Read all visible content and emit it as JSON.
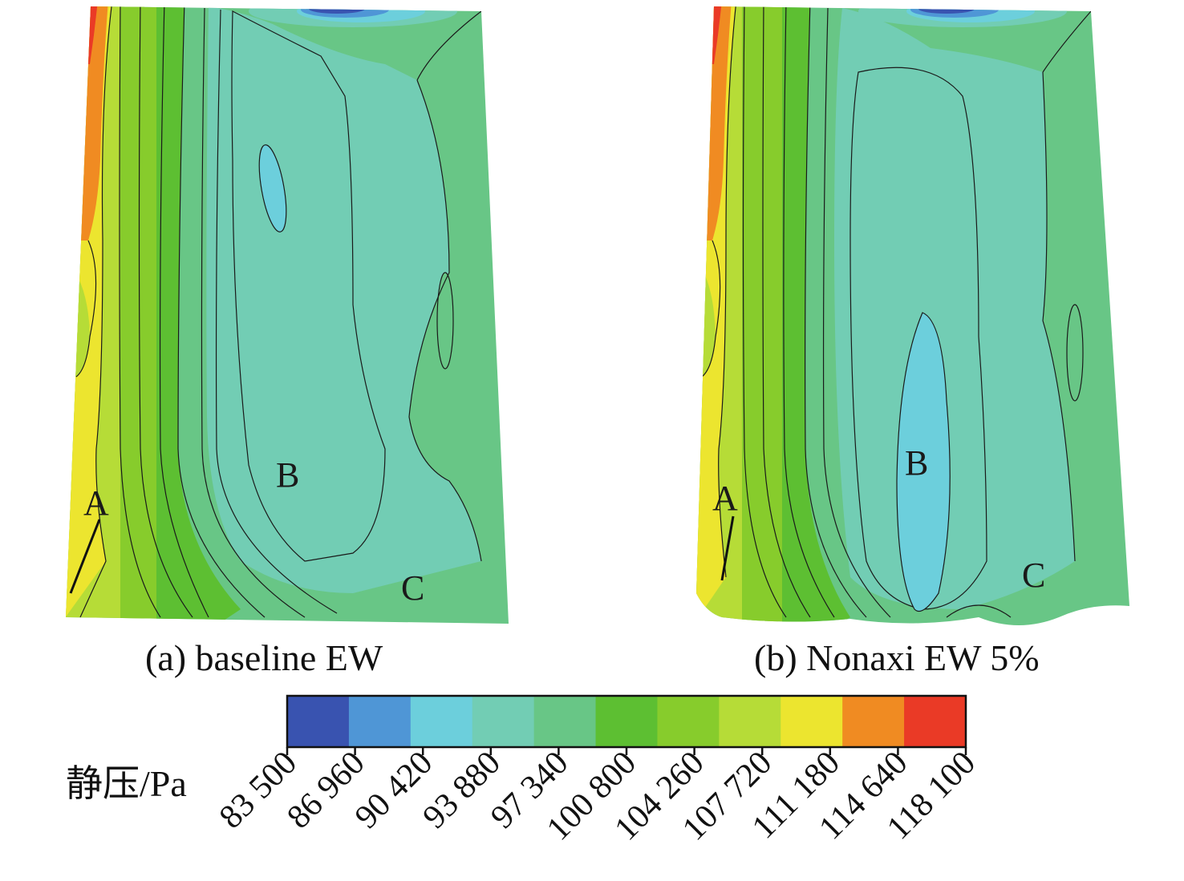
{
  "chart_data": {
    "type": "heatmap",
    "panels": [
      {
        "caption": "(a) baseline EW",
        "annotations": [
          "A",
          "B",
          "C"
        ]
      },
      {
        "caption": "(b) Nonaxi EW 5%",
        "annotations": [
          "A",
          "B",
          "C"
        ]
      }
    ],
    "colorbar": {
      "label": "静压/Pa",
      "ticks": [
        "83 500",
        "86 960",
        "90 420",
        "93 880",
        "97 340",
        "100 800",
        "104 260",
        "107 720",
        "111 180",
        "114 640",
        "118 100"
      ],
      "tick_values": [
        83500,
        86960,
        90420,
        93880,
        97340,
        100800,
        104260,
        107720,
        111180,
        114640,
        118100
      ],
      "colors": [
        "#3953b0",
        "#4f96d6",
        "#6ccfdc",
        "#72cdb4",
        "#68c686",
        "#5dbf32",
        "#87cc2c",
        "#b6dc37",
        "#ece52f",
        "#f08b22",
        "#ea3a26"
      ]
    }
  }
}
